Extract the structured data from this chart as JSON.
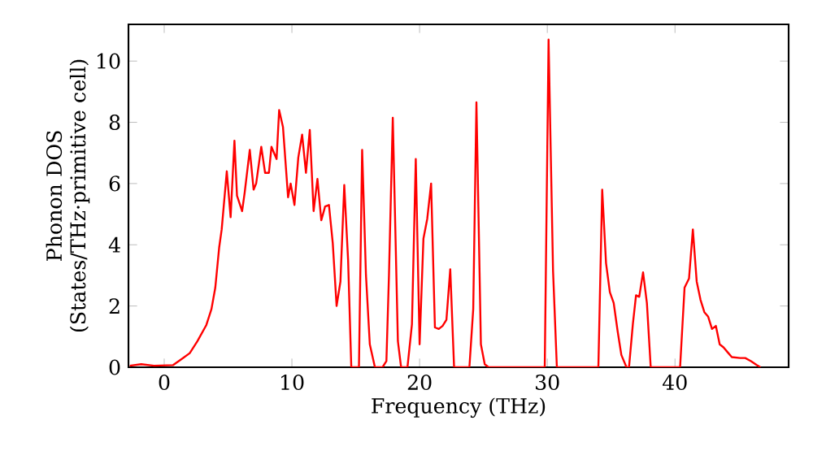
{
  "chart_data": {
    "type": "line",
    "xlabel": "Frequency (THz)",
    "ylabel": "Phonon DOS (States/THz·primitive cell)",
    "xlim": [
      -2.8,
      48.9
    ],
    "ylim": [
      0,
      11.2
    ],
    "xticks": [
      0,
      10,
      20,
      30,
      40
    ],
    "yticks": [
      0,
      2,
      4,
      6,
      8,
      10
    ],
    "color": "#ff0000",
    "x": [
      -2.7,
      -1.8,
      -0.8,
      0.7,
      1.4,
      2.0,
      2.6,
      3.3,
      3.7,
      4.0,
      4.3,
      4.5,
      4.9,
      5.2,
      5.5,
      5.7,
      6.1,
      6.3,
      6.7,
      7.0,
      7.2,
      7.6,
      7.9,
      8.2,
      8.4,
      8.8,
      9.0,
      9.3,
      9.7,
      9.9,
      10.2,
      10.5,
      10.8,
      11.1,
      11.4,
      11.7,
      12.0,
      12.3,
      12.6,
      12.9,
      13.2,
      13.5,
      13.8,
      14.1,
      14.4,
      14.65,
      15.25,
      15.5,
      15.8,
      16.1,
      16.5,
      17.1,
      17.4,
      17.6,
      17.9,
      18.3,
      18.55,
      19.05,
      19.4,
      19.7,
      20.0,
      20.3,
      20.6,
      20.9,
      21.2,
      21.5,
      21.8,
      22.1,
      22.4,
      22.7,
      23.9,
      24.2,
      24.45,
      24.8,
      25.1,
      25.4,
      29.8,
      30.1,
      30.45,
      30.75,
      34.0,
      34.3,
      34.6,
      34.9,
      35.2,
      35.5,
      35.8,
      36.2,
      36.4,
      36.7,
      36.95,
      37.2,
      37.5,
      37.8,
      38.1,
      40.4,
      40.75,
      41.1,
      41.4,
      41.7,
      42.0,
      42.3,
      42.6,
      42.9,
      43.2,
      43.5,
      43.8,
      44.1,
      44.45,
      45.1,
      45.5,
      45.95,
      46.4,
      46.7
    ],
    "values": [
      0.05,
      0.1,
      0.05,
      0.07,
      0.28,
      0.46,
      0.85,
      1.38,
      1.9,
      2.6,
      3.9,
      4.5,
      6.4,
      4.9,
      7.4,
      5.6,
      5.1,
      5.7,
      7.1,
      5.8,
      6.0,
      7.2,
      6.35,
      6.35,
      7.2,
      6.8,
      8.4,
      7.85,
      5.55,
      6.0,
      5.3,
      6.85,
      7.6,
      6.35,
      7.75,
      5.1,
      6.15,
      4.8,
      5.25,
      5.3,
      4.05,
      2.0,
      2.8,
      5.95,
      3.5,
      0,
      0,
      7.1,
      3.0,
      0.75,
      0,
      0,
      0.2,
      3.0,
      8.15,
      0.85,
      0,
      0,
      1.4,
      6.8,
      0.75,
      4.2,
      4.85,
      6.0,
      1.3,
      1.25,
      1.35,
      1.55,
      3.2,
      0,
      0,
      1.9,
      8.65,
      0.75,
      0.1,
      0,
      0,
      10.7,
      3.15,
      0,
      0,
      5.8,
      3.4,
      2.45,
      2.1,
      1.2,
      0.4,
      0,
      0,
      1.4,
      2.35,
      2.3,
      3.1,
      2.1,
      0,
      0,
      2.6,
      2.9,
      4.5,
      2.8,
      2.2,
      1.8,
      1.65,
      1.25,
      1.35,
      0.75,
      0.65,
      0.5,
      0.33,
      0.3,
      0.3,
      0.2,
      0.07,
      0
    ]
  }
}
